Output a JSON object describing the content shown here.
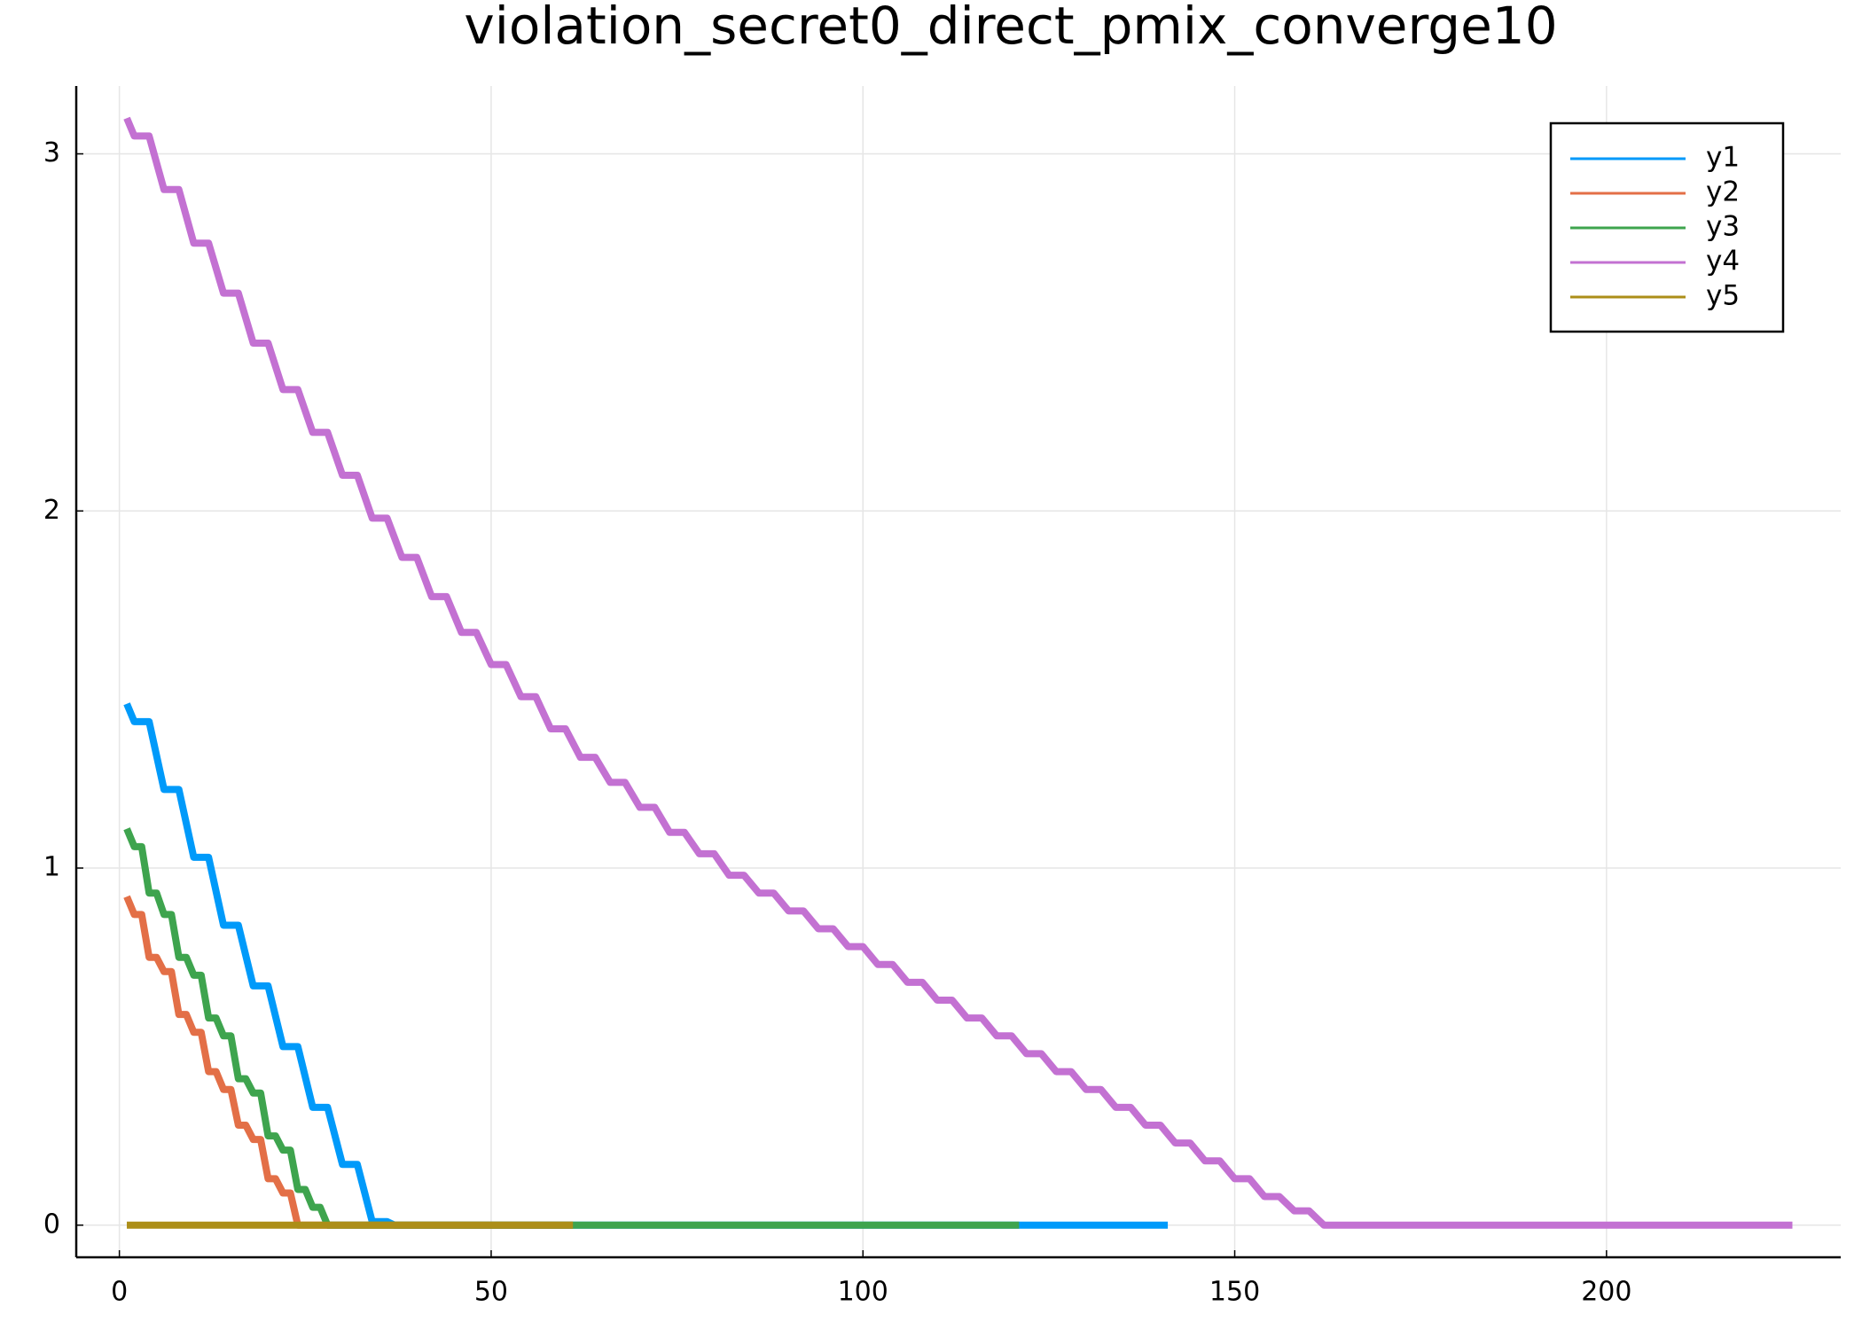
{
  "chart_data": {
    "type": "line",
    "title": "violation_secret0_direct_pmix_converge10",
    "xlim": [
      -5.8,
      231.5
    ],
    "ylim": [
      -0.09,
      3.19
    ],
    "xticks": [
      0,
      50,
      100,
      150,
      200
    ],
    "yticks": [
      0,
      1,
      2,
      3
    ],
    "grid": true,
    "legend": "top-right",
    "series": [
      {
        "name": "y1",
        "color": "#009afa",
        "x": [
          1,
          2,
          4,
          6,
          8,
          10,
          12,
          14,
          16,
          18,
          20,
          22,
          24,
          26,
          28,
          30,
          32,
          34,
          36,
          37,
          141
        ],
        "values": [
          1.46,
          1.41,
          1.41,
          1.22,
          1.22,
          1.03,
          1.03,
          0.84,
          0.84,
          0.67,
          0.67,
          0.5,
          0.5,
          0.33,
          0.33,
          0.17,
          0.17,
          0.01,
          0.01,
          0,
          0
        ]
      },
      {
        "name": "y2",
        "color": "#e36f47",
        "x": [
          1,
          2,
          3,
          4,
          5,
          6,
          7,
          8,
          9,
          10,
          11,
          12,
          13,
          14,
          15,
          16,
          17,
          18,
          19,
          20,
          21,
          22,
          23,
          24,
          61
        ],
        "values": [
          0.92,
          0.87,
          0.87,
          0.75,
          0.75,
          0.71,
          0.71,
          0.59,
          0.59,
          0.54,
          0.54,
          0.43,
          0.43,
          0.38,
          0.38,
          0.28,
          0.28,
          0.24,
          0.24,
          0.13,
          0.13,
          0.09,
          0.09,
          0,
          0
        ]
      },
      {
        "name": "y3",
        "color": "#3ea44e",
        "x": [
          1,
          2,
          3,
          4,
          5,
          6,
          7,
          8,
          9,
          10,
          11,
          12,
          13,
          14,
          15,
          16,
          17,
          18,
          19,
          20,
          21,
          22,
          23,
          24,
          25,
          26,
          27,
          28,
          121
        ],
        "values": [
          1.11,
          1.06,
          1.06,
          0.93,
          0.93,
          0.87,
          0.87,
          0.75,
          0.75,
          0.7,
          0.7,
          0.58,
          0.58,
          0.53,
          0.53,
          0.41,
          0.41,
          0.37,
          0.37,
          0.25,
          0.25,
          0.21,
          0.21,
          0.1,
          0.1,
          0.05,
          0.05,
          0,
          0
        ]
      },
      {
        "name": "y4",
        "color": "#c371d2",
        "x": [
          1,
          2,
          4,
          6,
          8,
          10,
          12,
          14,
          16,
          18,
          20,
          22,
          24,
          26,
          28,
          30,
          32,
          34,
          36,
          38,
          40,
          42,
          44,
          46,
          48,
          50,
          52,
          54,
          56,
          58,
          60,
          62,
          64,
          66,
          68,
          70,
          72,
          74,
          76,
          78,
          80,
          82,
          84,
          86,
          88,
          90,
          92,
          94,
          96,
          98,
          100,
          102,
          104,
          106,
          108,
          110,
          112,
          114,
          116,
          118,
          120,
          122,
          124,
          126,
          128,
          130,
          132,
          134,
          136,
          138,
          140,
          142,
          144,
          146,
          148,
          150,
          152,
          154,
          156,
          158,
          160,
          162,
          225
        ],
        "values": [
          3.1,
          3.05,
          3.05,
          2.9,
          2.9,
          2.75,
          2.75,
          2.61,
          2.61,
          2.47,
          2.47,
          2.34,
          2.34,
          2.22,
          2.22,
          2.1,
          2.1,
          1.98,
          1.98,
          1.87,
          1.87,
          1.76,
          1.76,
          1.66,
          1.66,
          1.57,
          1.57,
          1.48,
          1.48,
          1.39,
          1.39,
          1.31,
          1.31,
          1.24,
          1.24,
          1.17,
          1.17,
          1.1,
          1.1,
          1.04,
          1.04,
          0.98,
          0.98,
          0.93,
          0.93,
          0.88,
          0.88,
          0.83,
          0.83,
          0.78,
          0.78,
          0.73,
          0.73,
          0.68,
          0.68,
          0.63,
          0.63,
          0.58,
          0.58,
          0.53,
          0.53,
          0.48,
          0.48,
          0.43,
          0.43,
          0.38,
          0.38,
          0.33,
          0.33,
          0.28,
          0.28,
          0.23,
          0.23,
          0.18,
          0.18,
          0.13,
          0.13,
          0.08,
          0.08,
          0.04,
          0.04,
          0,
          0
        ]
      },
      {
        "name": "y5",
        "color": "#ac8e18",
        "x": [
          1,
          61
        ],
        "values": [
          0,
          0
        ]
      }
    ]
  }
}
